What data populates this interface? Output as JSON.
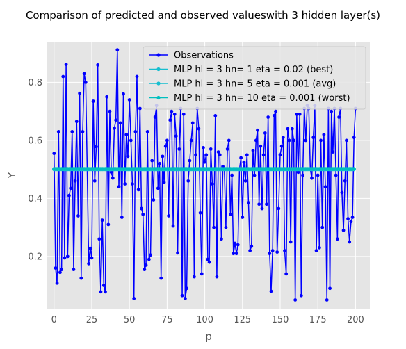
{
  "chart_data": {
    "type": "line",
    "title": "Comparison of predicted and observed valueswith 3 hidden layer(s)",
    "xlabel": "p",
    "ylabel": "Y",
    "xlim": [
      -4.5,
      209.5
    ],
    "ylim": [
      0.02,
      0.94
    ],
    "xticks": [
      0,
      25,
      50,
      75,
      100,
      125,
      150,
      175,
      200
    ],
    "yticks": [
      0.2,
      0.4,
      0.6,
      0.8
    ],
    "ytick_labels": [
      "0.2",
      "0.4",
      "0.6",
      "0.8"
    ],
    "grid": true,
    "legend_position": "top-right",
    "series": [
      {
        "name": "Observations",
        "color": "#0000ff",
        "marker": "circle",
        "values": [
          0.555,
          0.16,
          0.108,
          0.63,
          0.145,
          0.155,
          0.82,
          0.195,
          0.862,
          0.2,
          0.41,
          0.435,
          0.63,
          0.155,
          0.46,
          0.665,
          0.34,
          0.762,
          0.125,
          0.63,
          0.83,
          0.8,
          0.5,
          0.175,
          0.228,
          0.195,
          0.735,
          0.46,
          0.578,
          0.86,
          0.26,
          0.078,
          0.325,
          0.1,
          0.078,
          0.75,
          0.31,
          0.7,
          0.49,
          0.47,
          0.642,
          0.67,
          0.912,
          0.44,
          0.66,
          0.335,
          0.76,
          0.45,
          0.62,
          0.545,
          0.74,
          0.6,
          0.45,
          0.055,
          0.63,
          0.82,
          0.43,
          0.71,
          0.365,
          0.345,
          0.155,
          0.17,
          0.63,
          0.19,
          0.205,
          0.53,
          0.395,
          0.68,
          0.72,
          0.435,
          0.52,
          0.125,
          0.545,
          0.455,
          0.58,
          0.6,
          0.34,
          0.67,
          0.7,
          0.305,
          0.69,
          0.615,
          0.212,
          0.57,
          0.71,
          0.065,
          0.69,
          0.055,
          0.09,
          0.46,
          0.53,
          0.6,
          0.66,
          0.13,
          0.55,
          0.71,
          0.64,
          0.35,
          0.14,
          0.575,
          0.525,
          0.55,
          0.19,
          0.18,
          0.57,
          0.45,
          0.3,
          0.685,
          0.13,
          0.56,
          0.55,
          0.26,
          0.51,
          0.5,
          0.3,
          0.57,
          0.6,
          0.345,
          0.48,
          0.21,
          0.245,
          0.21,
          0.24,
          0.5,
          0.54,
          0.335,
          0.525,
          0.46,
          0.55,
          0.385,
          0.22,
          0.235,
          0.565,
          0.48,
          0.6,
          0.635,
          0.38,
          0.58,
          0.365,
          0.55,
          0.625,
          0.38,
          0.68,
          0.21,
          0.08,
          0.22,
          0.685,
          0.7,
          0.215,
          0.365,
          0.55,
          0.58,
          0.61,
          0.22,
          0.14,
          0.64,
          0.6,
          0.25,
          0.64,
          0.6,
          0.05,
          0.69,
          0.49,
          0.69,
          0.065,
          0.48,
          0.71,
          0.6,
          0.72,
          0.71,
          0.5,
          0.47,
          0.61,
          0.72,
          0.22,
          0.48,
          0.23,
          0.6,
          0.3,
          0.62,
          0.44,
          0.05,
          0.71,
          0.09,
          0.7,
          0.56,
          0.71,
          0.48,
          0.26,
          0.68,
          0.71,
          0.42,
          0.29,
          0.46,
          0.6,
          0.33,
          0.25,
          0.32,
          0.335,
          0.61,
          0.71
        ]
      },
      {
        "name": "MLP hl = 3 hn= 1 eta = 0.02 (best)",
        "color": "#17becf",
        "marker": "circle",
        "constant": 0.5,
        "count": 200
      },
      {
        "name": "MLP hl = 3 hn= 5 eta = 0.001 (avg)",
        "color": "#17becf",
        "marker": "circle",
        "constant": 0.501,
        "count": 200
      },
      {
        "name": "MLP hl = 3 hn= 10 eta = 0.001 (worst)",
        "color": "#00bfbf",
        "marker": "circle",
        "constant": 0.502,
        "count": 200
      }
    ]
  }
}
